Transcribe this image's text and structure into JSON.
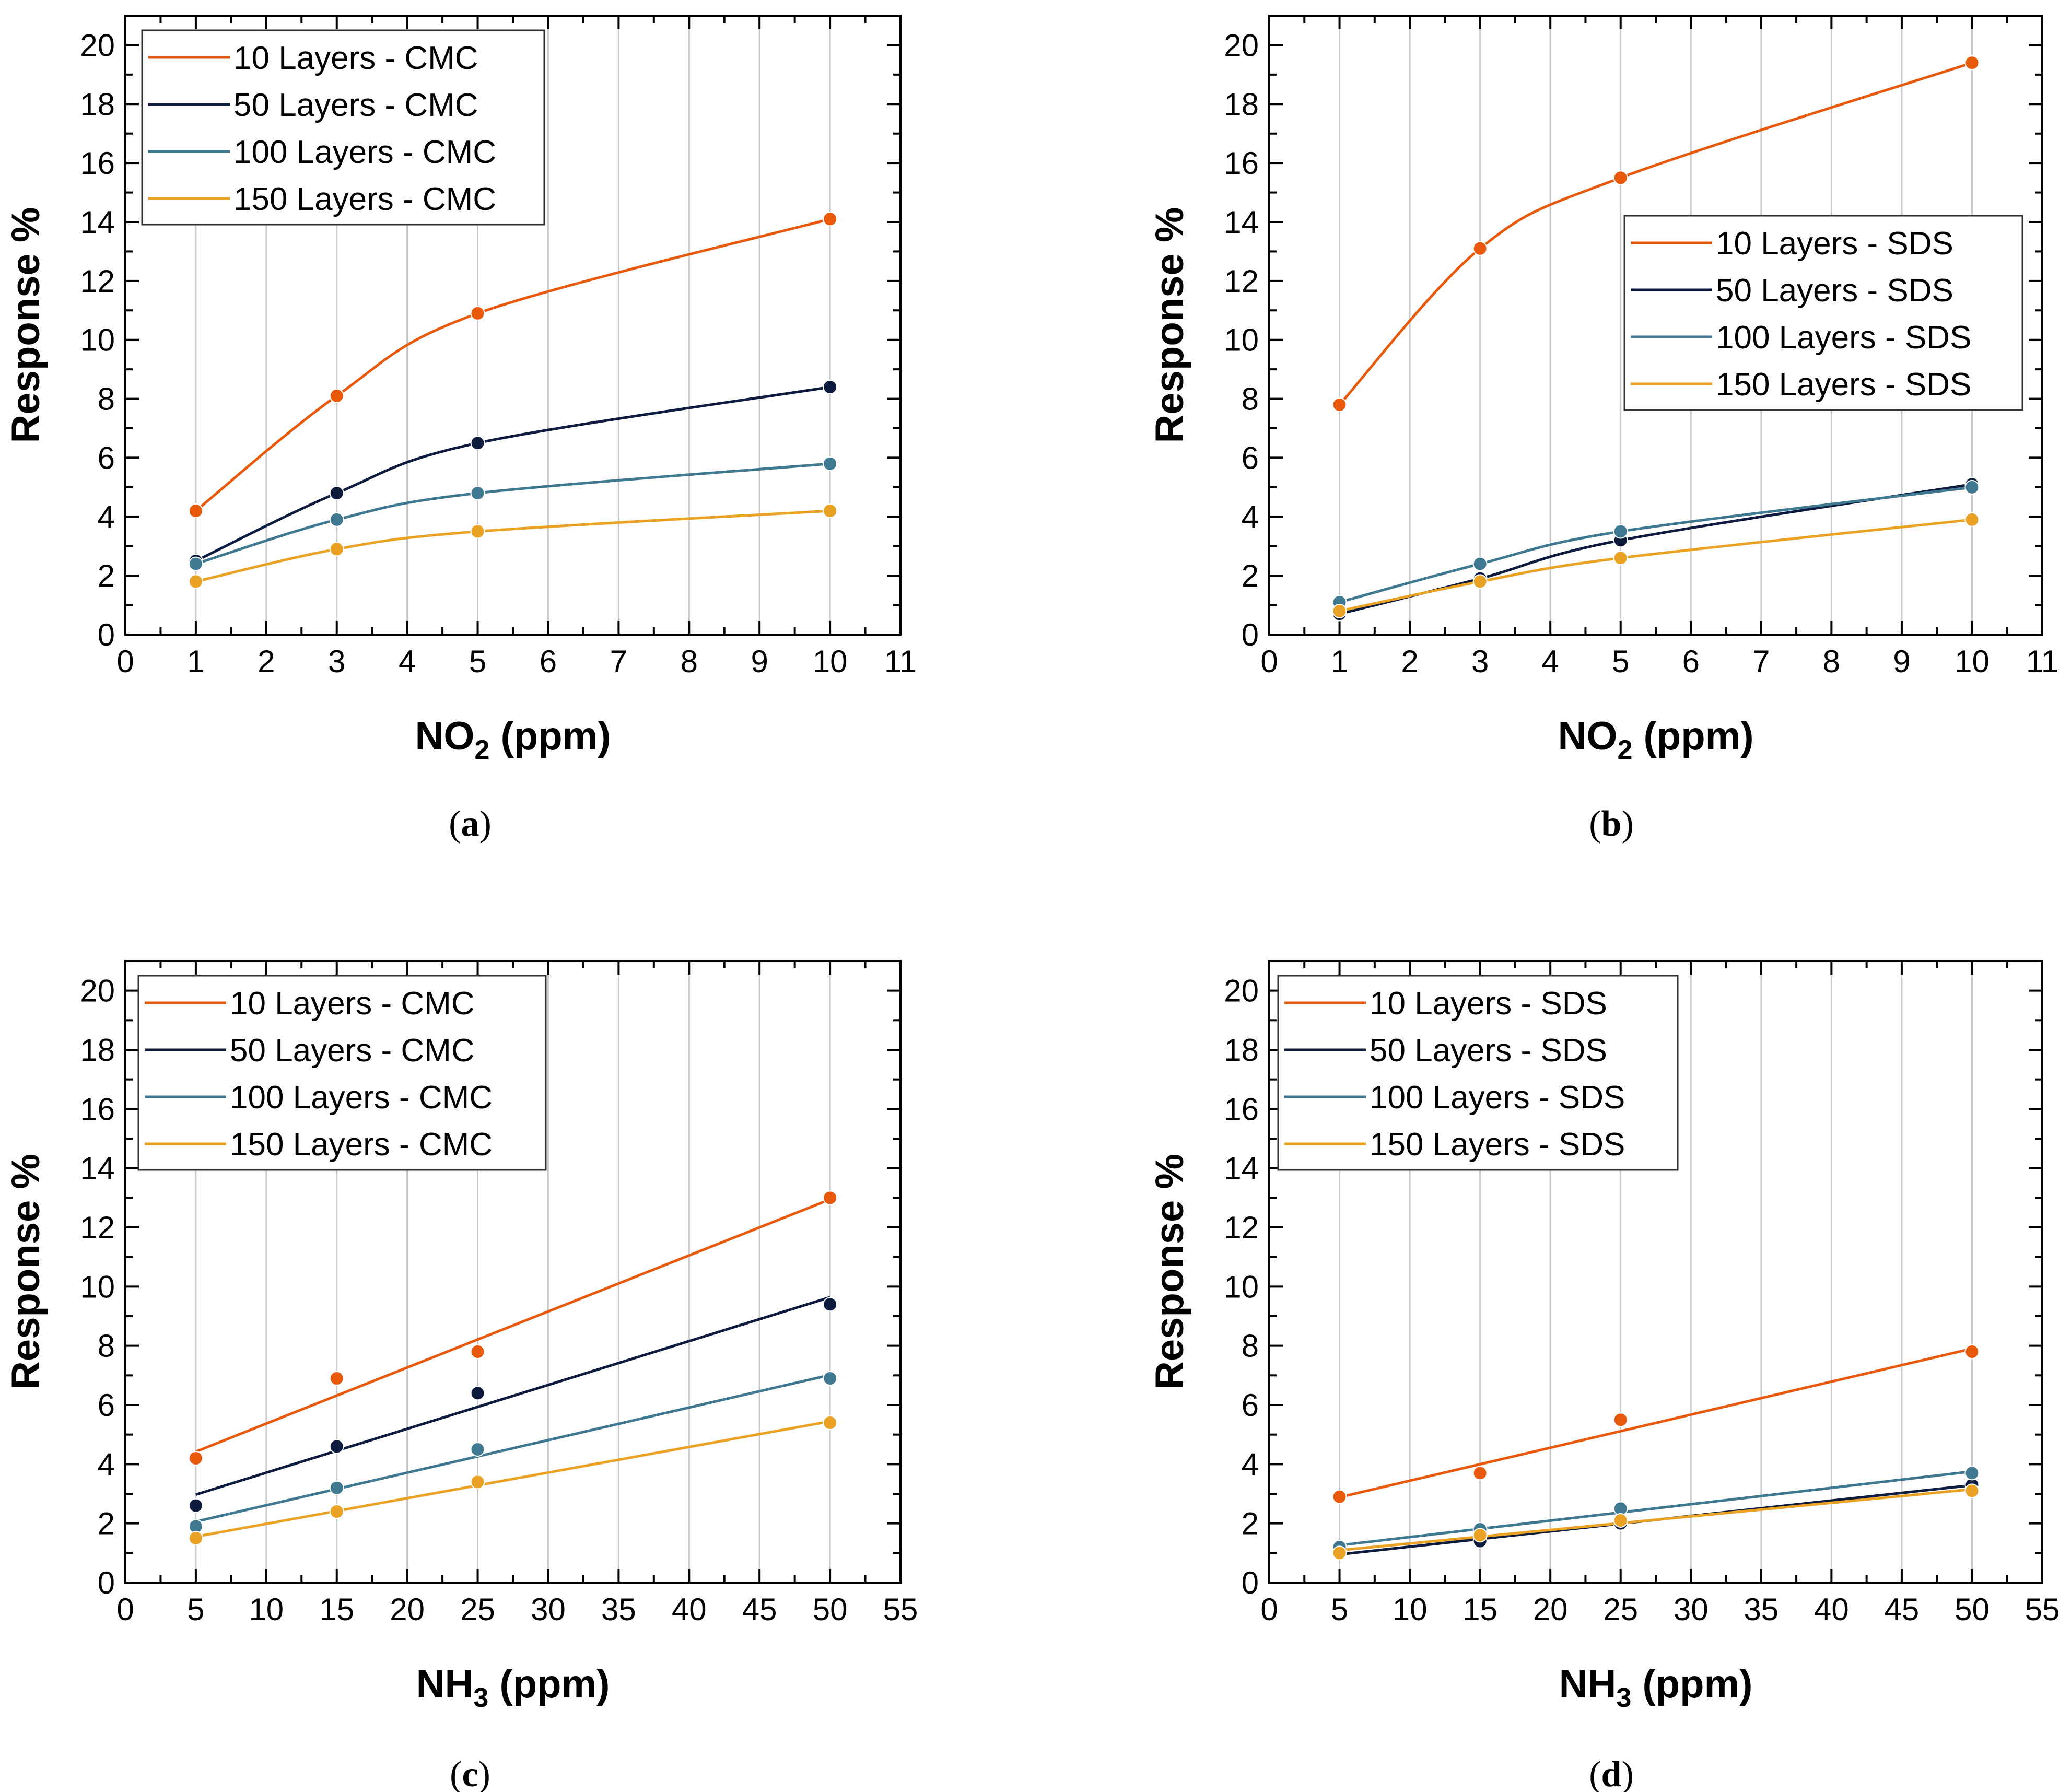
{
  "chart_data": [
    {
      "panel": "(a)",
      "type": "line",
      "caption_letter": "a",
      "xlabel": {
        "main": "NO",
        "sub": "2",
        "suffix": " (ppm)"
      },
      "ylabel": "Response %",
      "xlim": [
        0,
        11
      ],
      "ylim": [
        0,
        21
      ],
      "x_ticks": [
        "0",
        "1",
        "2",
        "3",
        "4",
        "5",
        "6",
        "7",
        "8",
        "9",
        "10",
        "11"
      ],
      "y_ticks": [
        "0",
        "2",
        "4",
        "6",
        "8",
        "10",
        "12",
        "14",
        "16",
        "18",
        "20"
      ],
      "x_gridlines": [
        1,
        2,
        3,
        4,
        5,
        6,
        7,
        8,
        9,
        10
      ],
      "fit": "curve",
      "legend_position": "top-left",
      "x": [
        1,
        3,
        5,
        10
      ],
      "series": [
        {
          "name": "10 Layers - CMC",
          "color": "#e8590c",
          "values": [
            4.2,
            8.1,
            10.9,
            14.1
          ]
        },
        {
          "name": "50 Layers - CMC",
          "color": "#0d1b3e",
          "values": [
            2.5,
            4.8,
            6.5,
            8.4
          ]
        },
        {
          "name": "100 Layers - CMC",
          "color": "#3f7891",
          "values": [
            2.4,
            3.9,
            4.8,
            5.8
          ]
        },
        {
          "name": "150 Layers - CMC",
          "color": "#e9a224",
          "values": [
            1.8,
            2.9,
            3.5,
            4.2
          ]
        }
      ]
    },
    {
      "panel": "(b)",
      "type": "line",
      "caption_letter": "b",
      "xlabel": {
        "main": "NO",
        "sub": "2",
        "suffix": " (ppm)"
      },
      "ylabel": "Response %",
      "xlim": [
        0,
        11
      ],
      "ylim": [
        0,
        21
      ],
      "x_ticks": [
        "0",
        "1",
        "2",
        "3",
        "4",
        "5",
        "6",
        "7",
        "8",
        "9",
        "10",
        "11"
      ],
      "y_ticks": [
        "0",
        "2",
        "4",
        "6",
        "8",
        "10",
        "12",
        "14",
        "16",
        "18",
        "20"
      ],
      "x_gridlines": [
        1,
        2,
        3,
        4,
        5,
        6,
        7,
        8,
        9,
        10
      ],
      "fit": "curve",
      "legend_position": "center-right",
      "x": [
        1,
        3,
        5,
        10
      ],
      "series": [
        {
          "name": "10 Layers - SDS",
          "color": "#e8590c",
          "values": [
            7.8,
            13.1,
            15.5,
            19.4
          ]
        },
        {
          "name": "50 Layers - SDS",
          "color": "#0d1b3e",
          "values": [
            0.7,
            1.9,
            3.2,
            5.1
          ]
        },
        {
          "name": "100 Layers - SDS",
          "color": "#3f7891",
          "values": [
            1.1,
            2.4,
            3.5,
            5.0
          ]
        },
        {
          "name": "150 Layers - SDS",
          "color": "#e9a224",
          "values": [
            0.8,
            1.8,
            2.6,
            3.9
          ]
        }
      ]
    },
    {
      "panel": "(c)",
      "type": "line",
      "caption_letter": "c",
      "xlabel": {
        "main": "NH",
        "sub": "3",
        "suffix": " (ppm)"
      },
      "ylabel": "Response %",
      "xlim": [
        0,
        55
      ],
      "ylim": [
        0,
        21
      ],
      "x_ticks": [
        "0",
        "5",
        "10",
        "15",
        "20",
        "25",
        "30",
        "35",
        "40",
        "45",
        "50",
        "55"
      ],
      "y_ticks": [
        "0",
        "2",
        "4",
        "6",
        "8",
        "10",
        "12",
        "14",
        "16",
        "18",
        "20"
      ],
      "x_gridlines": [
        5,
        10,
        15,
        20,
        25,
        30,
        35,
        40,
        45,
        50
      ],
      "fit": "linear",
      "legend_position": "top-left",
      "x": [
        5,
        15,
        25,
        50
      ],
      "series": [
        {
          "name": "10 Layers - CMC",
          "color": "#e8590c",
          "values": [
            4.2,
            6.9,
            7.8,
            13.0
          ]
        },
        {
          "name": "50 Layers - CMC",
          "color": "#0d1b3e",
          "values": [
            2.6,
            4.6,
            6.4,
            9.4
          ]
        },
        {
          "name": "100 Layers - CMC",
          "color": "#3f7891",
          "values": [
            1.9,
            3.2,
            4.5,
            6.9
          ]
        },
        {
          "name": "150 Layers - CMC",
          "color": "#e9a224",
          "values": [
            1.5,
            2.4,
            3.4,
            5.4
          ]
        }
      ]
    },
    {
      "panel": "(d)",
      "type": "line",
      "caption_letter": "d",
      "xlabel": {
        "main": "NH",
        "sub": "3",
        "suffix": " (ppm)"
      },
      "ylabel": "Response %",
      "xlim": [
        0,
        55
      ],
      "ylim": [
        0,
        21
      ],
      "x_ticks": [
        "0",
        "5",
        "10",
        "15",
        "20",
        "25",
        "30",
        "35",
        "40",
        "45",
        "50",
        "55"
      ],
      "y_ticks": [
        "0",
        "2",
        "4",
        "6",
        "8",
        "10",
        "12",
        "14",
        "16",
        "18",
        "20"
      ],
      "x_gridlines": [
        5,
        10,
        15,
        20,
        25,
        30,
        35,
        40,
        45,
        50
      ],
      "fit": "linear",
      "legend_position": "top-left",
      "x": [
        5,
        15,
        25,
        50
      ],
      "series": [
        {
          "name": "10 Layers - SDS",
          "color": "#e8590c",
          "values": [
            2.9,
            3.7,
            5.5,
            7.8
          ]
        },
        {
          "name": "50 Layers - SDS",
          "color": "#0d1b3e",
          "values": [
            1.0,
            1.4,
            2.0,
            3.3
          ]
        },
        {
          "name": "100 Layers - SDS",
          "color": "#3f7891",
          "values": [
            1.2,
            1.8,
            2.5,
            3.7
          ]
        },
        {
          "name": "150 Layers - SDS",
          "color": "#e9a224",
          "values": [
            1.0,
            1.6,
            2.1,
            3.1
          ]
        }
      ]
    }
  ]
}
